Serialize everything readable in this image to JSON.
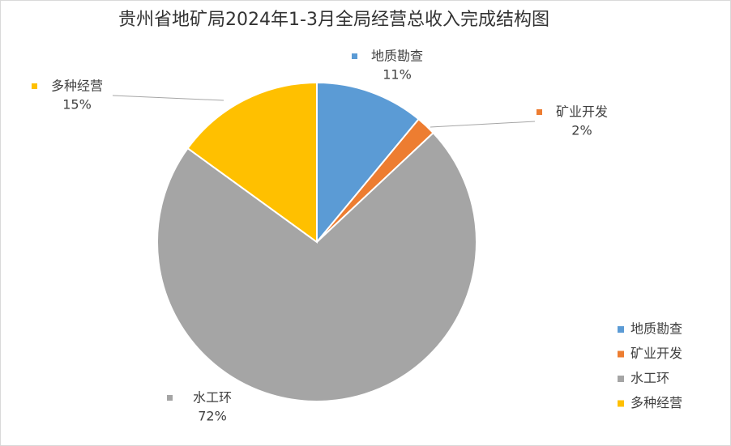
{
  "chart_data": {
    "type": "pie",
    "title": "贵州省地矿局2024年1-3月全局经营总收入完成结构图",
    "categories": [
      "地质勘查",
      "矿业开发",
      "水工环",
      "多种经营"
    ],
    "values": [
      11,
      2,
      72,
      15
    ],
    "value_labels": [
      "11%",
      "2%",
      "72%",
      "15%"
    ],
    "colors": [
      "#5b9bd5",
      "#ed7d31",
      "#a5a5a5",
      "#ffc000"
    ],
    "legend": "right"
  }
}
